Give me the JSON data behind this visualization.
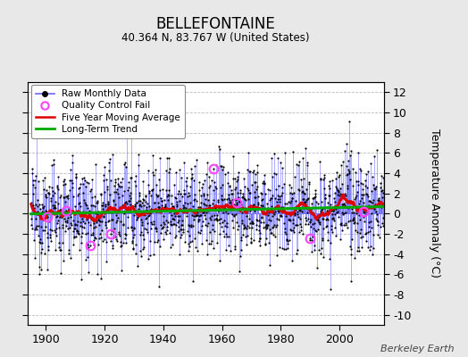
{
  "title": "BELLEFONTAINE",
  "subtitle": "40.364 N, 83.767 W (United States)",
  "ylabel": "Temperature Anomaly (°C)",
  "credit": "Berkeley Earth",
  "year_start": 1895,
  "year_end": 2014,
  "ylim": [
    -11,
    13
  ],
  "yticks": [
    -10,
    -8,
    -6,
    -4,
    -2,
    0,
    2,
    4,
    6,
    8,
    10,
    12
  ],
  "xticks": [
    1900,
    1920,
    1940,
    1960,
    1980,
    2000
  ],
  "bg_color": "#e8e8e8",
  "plot_bg_color": "#ffffff",
  "raw_line_color": "#6666ff",
  "raw_dot_color": "#000000",
  "qc_fail_color": "#ff44ff",
  "moving_avg_color": "#dd0000",
  "trend_color": "#00aa00",
  "seed": 12345
}
